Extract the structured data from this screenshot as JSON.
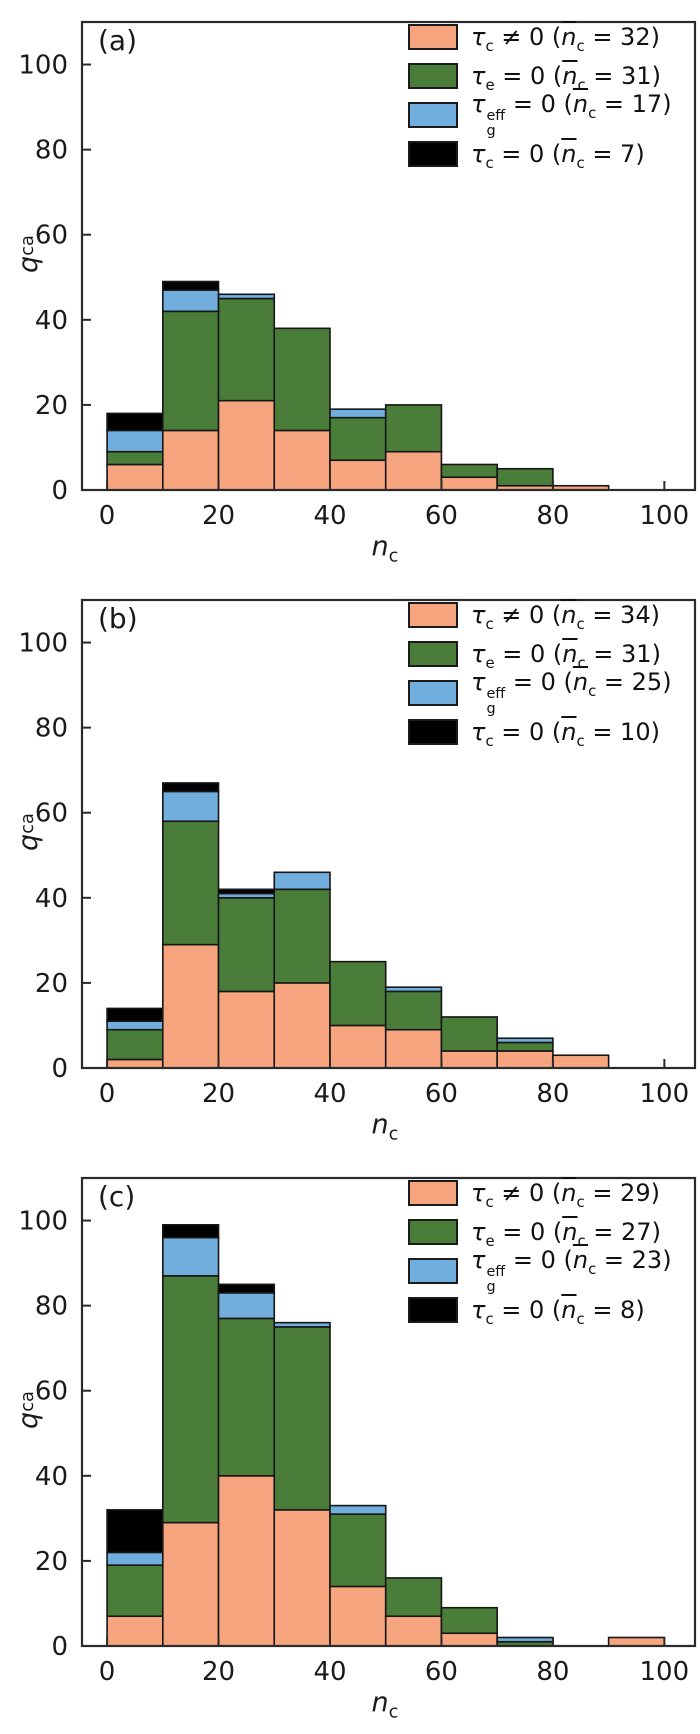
{
  "figure": {
    "background": "#ffffff"
  },
  "style": {
    "bar_stroke": "#161616",
    "axis_color": "#2a2a2a",
    "text_color": "#1a1a1a",
    "orange": "#F7A57E",
    "green": "#4B7D3A",
    "blue": "#72AEDD",
    "black": "#000000"
  },
  "chart_data": [
    {
      "type": "bar",
      "subtype": "stacked_histogram",
      "panel_label": "(a)",
      "xlabel": {
        "main": "n",
        "sub": "c"
      },
      "ylabel": {
        "main": "q",
        "sub": "ca"
      },
      "bin_start": 0,
      "bin_width": 10,
      "bin_count": 10,
      "x_ticks": [
        0,
        20,
        40,
        60,
        80,
        100
      ],
      "y_ticks": [
        0,
        20,
        40,
        60,
        80,
        100
      ],
      "xlim": [
        -4.5,
        105.5
      ],
      "ylim": [
        0,
        110
      ],
      "legend_position": "top-right",
      "series": [
        {
          "name": "tau_c_ne_0",
          "color": "#F7A57E",
          "tau_sub": "c",
          "tau_sup": "",
          "relation": "≠",
          "rhs": "0",
          "n_mean": 32,
          "values": [
            6,
            14,
            21,
            14,
            7,
            9,
            3,
            1,
            1,
            0
          ]
        },
        {
          "name": "tau_e_eq_0",
          "color": "#4B7D3A",
          "tau_sub": "e",
          "tau_sup": "",
          "relation": "=",
          "rhs": "0",
          "n_mean": 31,
          "values": [
            3,
            28,
            24,
            24,
            10,
            11,
            3,
            4,
            0,
            0
          ]
        },
        {
          "name": "tau_g_eff_eq_0",
          "color": "#72AEDD",
          "tau_sub": "g",
          "tau_sup": "eff",
          "relation": "=",
          "rhs": "0",
          "n_mean": 17,
          "values": [
            5,
            5,
            1,
            0,
            2,
            0,
            0,
            0,
            0,
            0
          ]
        },
        {
          "name": "tau_c_eq_0",
          "color": "#000000",
          "tau_sub": "c",
          "tau_sup": "",
          "relation": "=",
          "rhs": "0",
          "n_mean": 7,
          "values": [
            4,
            2,
            0,
            0,
            0,
            0,
            0,
            0,
            0,
            0
          ]
        }
      ]
    },
    {
      "type": "bar",
      "subtype": "stacked_histogram",
      "panel_label": "(b)",
      "xlabel": {
        "main": "n",
        "sub": "c"
      },
      "ylabel": {
        "main": "q",
        "sub": "ca"
      },
      "bin_start": 0,
      "bin_width": 10,
      "bin_count": 10,
      "x_ticks": [
        0,
        20,
        40,
        60,
        80,
        100
      ],
      "y_ticks": [
        0,
        20,
        40,
        60,
        80,
        100
      ],
      "xlim": [
        -4.5,
        105.5
      ],
      "ylim": [
        0,
        110
      ],
      "legend_position": "top-right",
      "series": [
        {
          "name": "tau_c_ne_0",
          "color": "#F7A57E",
          "tau_sub": "c",
          "tau_sup": "",
          "relation": "≠",
          "rhs": "0",
          "n_mean": 34,
          "values": [
            2,
            29,
            18,
            20,
            10,
            9,
            4,
            4,
            3,
            0
          ]
        },
        {
          "name": "tau_e_eq_0",
          "color": "#4B7D3A",
          "tau_sub": "e",
          "tau_sup": "",
          "relation": "=",
          "rhs": "0",
          "n_mean": 31,
          "values": [
            7,
            29,
            22,
            22,
            15,
            9,
            8,
            2,
            0,
            0
          ]
        },
        {
          "name": "tau_g_eff_eq_0",
          "color": "#72AEDD",
          "tau_sub": "g",
          "tau_sup": "eff",
          "relation": "=",
          "rhs": "0",
          "n_mean": 25,
          "values": [
            2,
            7,
            1,
            4,
            0,
            1,
            0,
            1,
            0,
            0
          ]
        },
        {
          "name": "tau_c_eq_0",
          "color": "#000000",
          "tau_sub": "c",
          "tau_sup": "",
          "relation": "=",
          "rhs": "0",
          "n_mean": 10,
          "values": [
            3,
            2,
            1,
            0,
            0,
            0,
            0,
            0,
            0,
            0
          ]
        }
      ]
    },
    {
      "type": "bar",
      "subtype": "stacked_histogram",
      "panel_label": "(c)",
      "xlabel": {
        "main": "n",
        "sub": "c"
      },
      "ylabel": {
        "main": "q",
        "sub": "ca"
      },
      "bin_start": 0,
      "bin_width": 10,
      "bin_count": 10,
      "x_ticks": [
        0,
        20,
        40,
        60,
        80,
        100
      ],
      "y_ticks": [
        0,
        20,
        40,
        60,
        80,
        100
      ],
      "xlim": [
        -4.5,
        105.5
      ],
      "ylim": [
        0,
        110
      ],
      "legend_position": "top-right",
      "series": [
        {
          "name": "tau_c_ne_0",
          "color": "#F7A57E",
          "tau_sub": "c",
          "tau_sup": "",
          "relation": "≠",
          "rhs": "0",
          "n_mean": 29,
          "values": [
            7,
            29,
            40,
            32,
            14,
            7,
            3,
            0,
            0,
            2
          ]
        },
        {
          "name": "tau_e_eq_0",
          "color": "#4B7D3A",
          "tau_sub": "e",
          "tau_sup": "",
          "relation": "=",
          "rhs": "0",
          "n_mean": 27,
          "values": [
            12,
            58,
            37,
            43,
            17,
            9,
            6,
            1,
            0,
            0
          ]
        },
        {
          "name": "tau_g_eff_eq_0",
          "color": "#72AEDD",
          "tau_sub": "g",
          "tau_sup": "eff",
          "relation": "=",
          "rhs": "0",
          "n_mean": 23,
          "values": [
            3,
            9,
            6,
            1,
            2,
            0,
            0,
            1,
            0,
            0
          ]
        },
        {
          "name": "tau_c_eq_0",
          "color": "#000000",
          "tau_sub": "c",
          "tau_sup": "",
          "relation": "=",
          "rhs": "0",
          "n_mean": 8,
          "values": [
            10,
            3,
            2,
            0,
            0,
            0,
            0,
            0,
            0,
            0
          ]
        }
      ]
    }
  ]
}
